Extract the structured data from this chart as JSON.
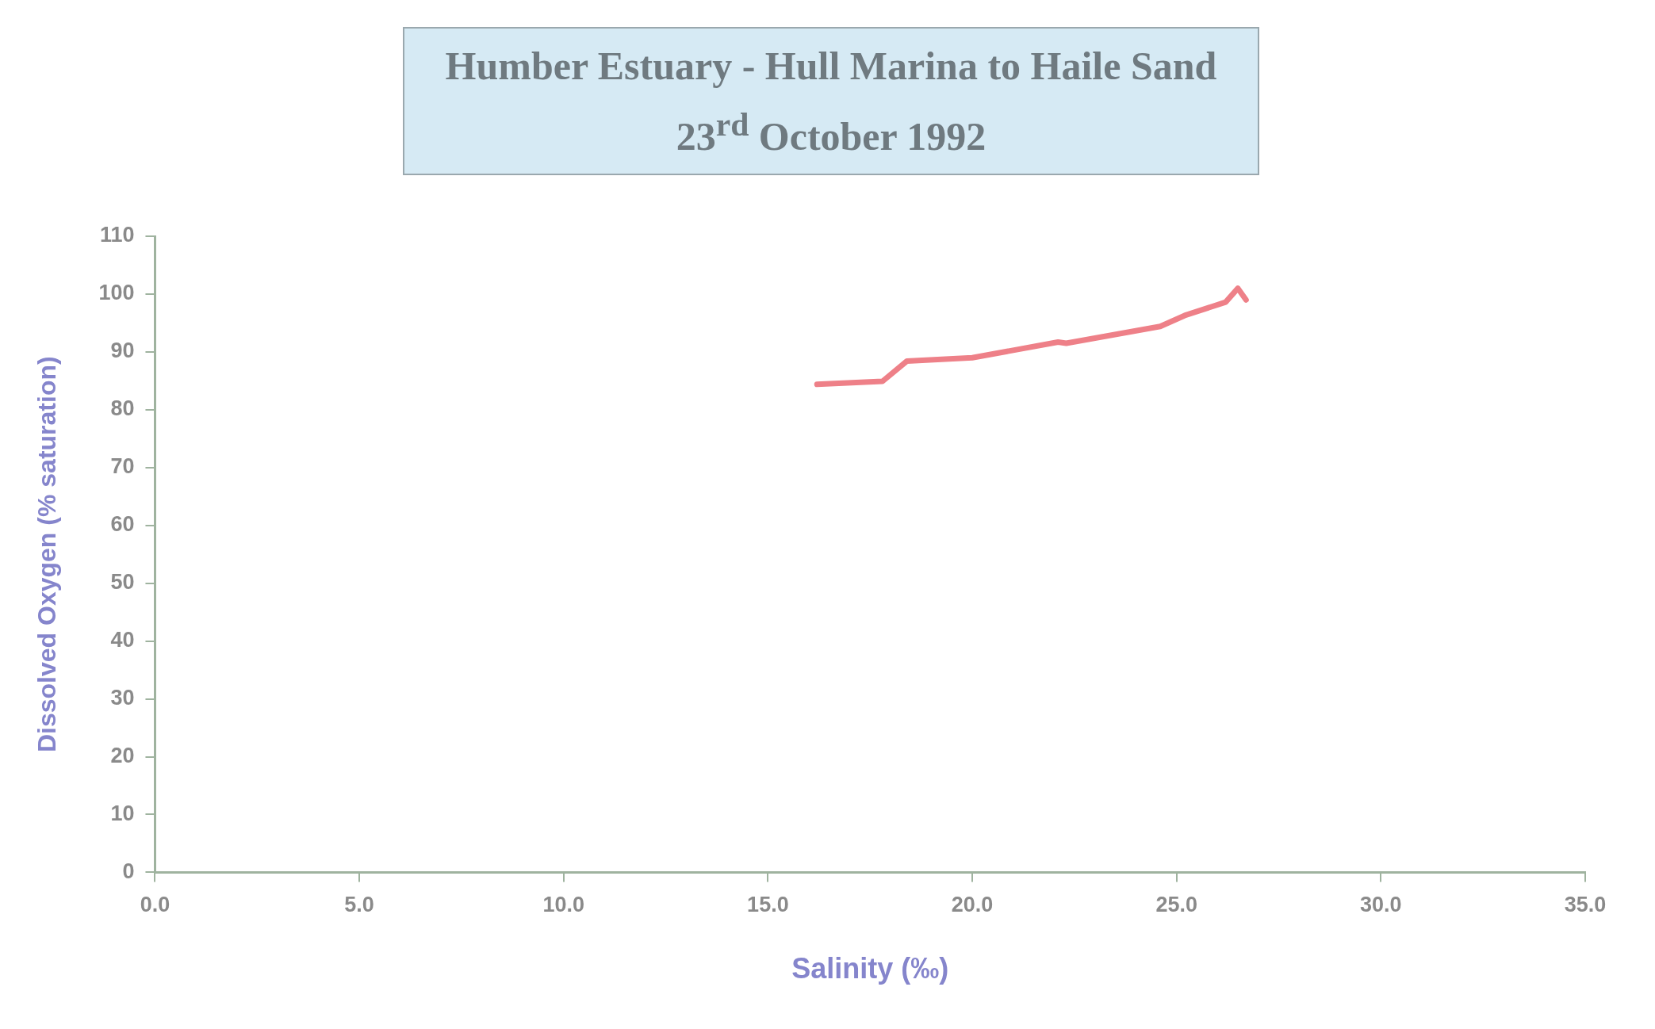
{
  "chart_data": {
    "type": "line",
    "title": "Humber Estuary - Hull Marina to Haile Sand",
    "subtitle": "23$^{rd}$ October 1992",
    "xlabel": "Salinity (‰)",
    "ylabel": "Dissolved Oxygen (% saturation)",
    "series": [
      {
        "color": "#ee8088",
        "x": [
          16.2,
          17.8,
          18.4,
          20.0,
          22.1,
          22.3,
          24.6,
          25.2,
          26.2,
          26.5,
          26.7
        ],
        "values": [
          84.4,
          84.9,
          88.4,
          89.0,
          91.7,
          91.5,
          94.4,
          96.3,
          98.6,
          101.0,
          99.0
        ]
      }
    ],
    "xlim": [
      0,
      35
    ],
    "xticks": [
      {
        "value": 0,
        "label": "0.0"
      },
      {
        "value": 5,
        "label": "5.0"
      },
      {
        "value": 10,
        "label": "10.0"
      },
      {
        "value": 15,
        "label": "15.0"
      },
      {
        "value": 20,
        "label": "20.0"
      },
      {
        "value": 25,
        "label": "25.0"
      },
      {
        "value": 30,
        "label": "30.0"
      },
      {
        "value": 35,
        "label": "35.0"
      }
    ],
    "ylim": [
      0,
      110
    ],
    "yticks": [
      0,
      10,
      20,
      30,
      40,
      50,
      60,
      70,
      80,
      90,
      100,
      110
    ],
    "grid": false,
    "legend": false,
    "marker": "none",
    "line_style": "solid"
  }
}
